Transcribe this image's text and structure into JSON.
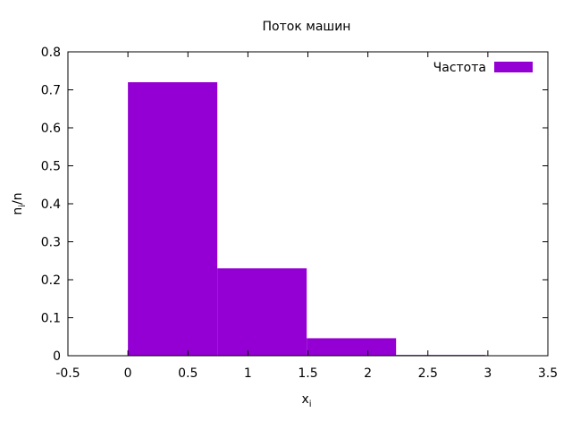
{
  "chart_data": {
    "type": "bar",
    "title": "Поток машин",
    "xlabel": "x",
    "xlabel_sub": "i",
    "ylabel_main": "n",
    "ylabel_sub": "i",
    "ylabel_tail": "/n",
    "xlim": [
      -0.5,
      3.5
    ],
    "ylim": [
      0,
      0.8
    ],
    "xticks": [
      -0.5,
      0,
      0.5,
      1,
      1.5,
      2,
      2.5,
      3,
      3.5
    ],
    "xtick_labels": [
      "-0.5",
      "0",
      "0.5",
      "1",
      "1.5",
      "2",
      "2.5",
      "3",
      "3.5"
    ],
    "yticks": [
      0,
      0.1,
      0.2,
      0.3,
      0.4,
      0.5,
      0.6,
      0.7,
      0.8
    ],
    "ytick_labels": [
      "0",
      "0.1",
      "0.2",
      "0.3",
      "0.4",
      "0.5",
      "0.6",
      "0.7",
      "0.8"
    ],
    "grid": false,
    "legend_position": "top-right",
    "series": [
      {
        "name": "Частота",
        "color": "#9400d3",
        "bins": [
          {
            "x0": 0,
            "x1": 0.745,
            "value": 0.72
          },
          {
            "x0": 0.745,
            "x1": 1.49,
            "value": 0.23
          },
          {
            "x0": 1.49,
            "x1": 2.235,
            "value": 0.046
          },
          {
            "x0": 2.235,
            "x1": 2.98,
            "value": 0.002
          }
        ]
      }
    ]
  }
}
